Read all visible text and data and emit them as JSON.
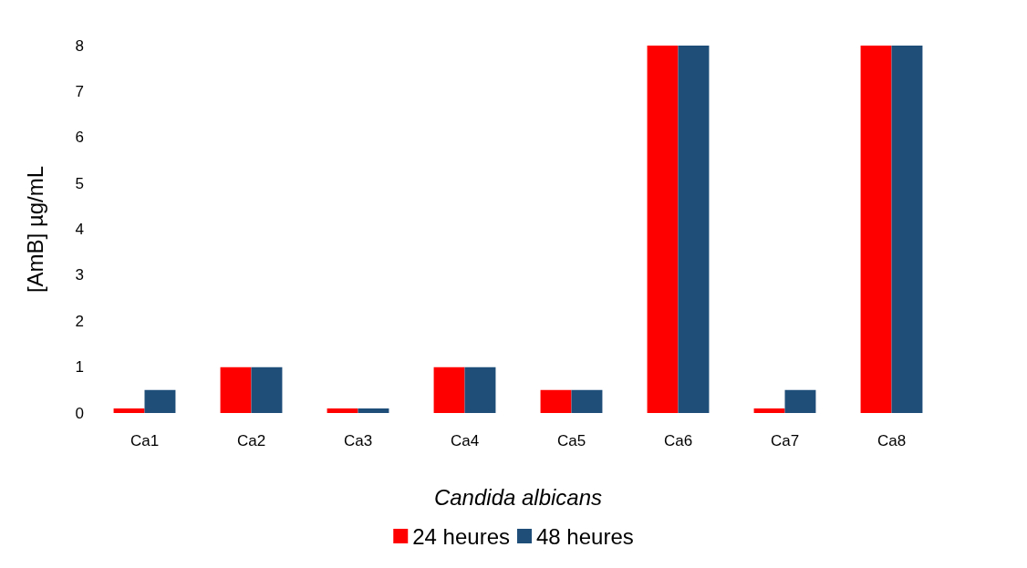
{
  "chart_data": {
    "type": "bar",
    "xlabel": "Candida albicans",
    "ylabel": "[AmB] µg/mL",
    "categories": [
      "Ca1",
      "Ca2",
      "Ca3",
      "Ca4",
      "Ca5",
      "Ca6",
      "Ca7",
      "Ca8"
    ],
    "series": [
      {
        "name": "24 heures",
        "color": "#ff0000",
        "values": [
          0.1,
          1,
          0.1,
          1,
          0.5,
          8,
          0.1,
          8
        ]
      },
      {
        "name": "48 heures",
        "color": "#1f4e79",
        "values": [
          0.5,
          1,
          0.1,
          1,
          0.5,
          8,
          0.5,
          8
        ]
      }
    ],
    "ylim": [
      0,
      8
    ],
    "yticks": [
      0,
      1,
      2,
      3,
      4,
      5,
      6,
      7,
      8
    ],
    "grid": false,
    "legend": "bottom"
  }
}
